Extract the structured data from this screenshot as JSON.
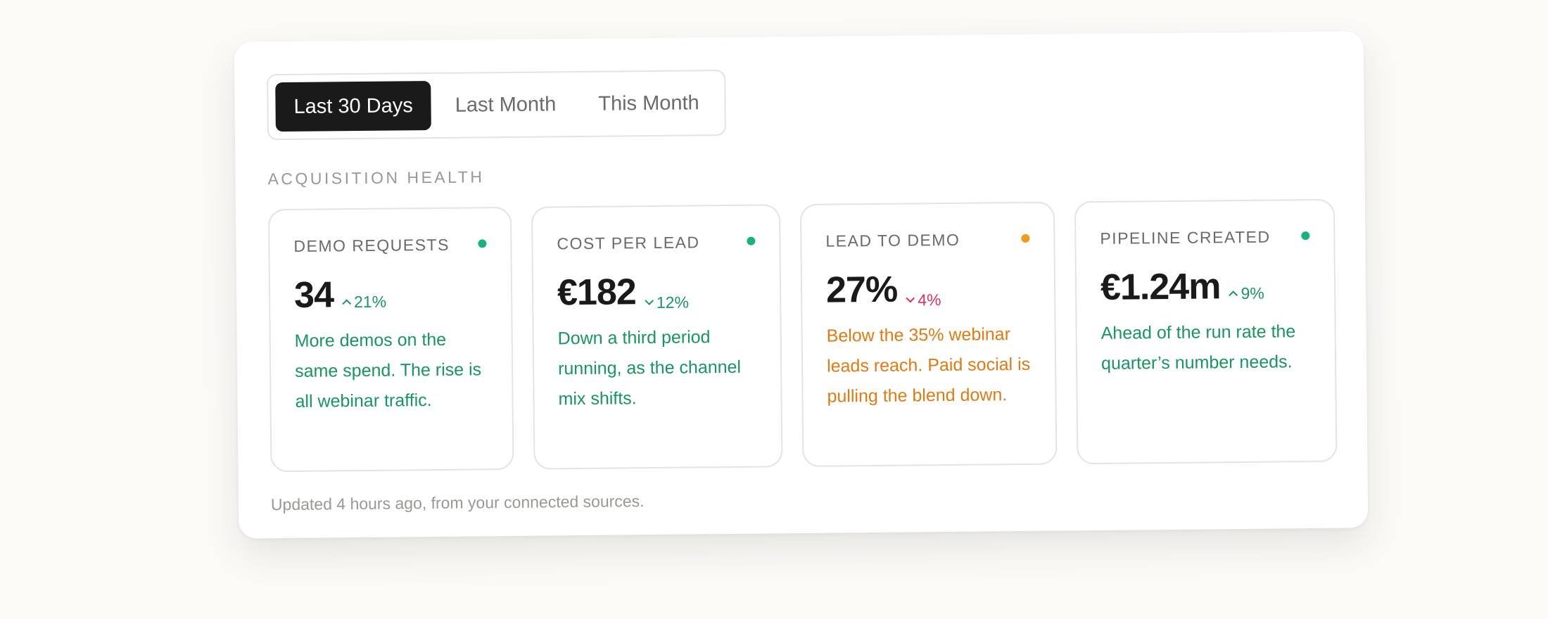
{
  "filters": {
    "options": [
      "Last 30 Days",
      "Last Month",
      "This Month"
    ],
    "active": "Last 30 Days"
  },
  "section_label": "ACQUISITION HEALTH",
  "cards": [
    {
      "title": "DEMO REQUESTS",
      "value": "34",
      "delta": "21%",
      "trend": "up",
      "status_color": "#16b37c",
      "note": "More demos on the same spend. The rise is all webinar traffic.",
      "note_color": "#17965f",
      "delta_color": "#17965f"
    },
    {
      "title": "COST PER LEAD",
      "value": "€182",
      "delta": "12%",
      "trend": "down",
      "status_color": "#16b37c",
      "note": "Down a third period running, as the channel mix shifts.",
      "note_color": "#17965f",
      "delta_color": "#17965f"
    },
    {
      "title": "LEAD TO DEMO",
      "value": "27%",
      "delta": "4%",
      "trend": "down",
      "status_color": "#f29a1a",
      "note": "Below the 35% webinar leads reach. Paid social is pulling the blend down.",
      "note_color": "#e27a12",
      "delta_color": "#e0305d"
    },
    {
      "title": "PIPELINE CREATED",
      "value": "€1.24m",
      "delta": "9%",
      "trend": "up",
      "status_color": "#16b37c",
      "note": "Ahead of the run rate the quarter’s number needs.",
      "note_color": "#17965f",
      "delta_color": "#17965f"
    }
  ],
  "footer": "Updated 4 hours ago, from your connected sources."
}
